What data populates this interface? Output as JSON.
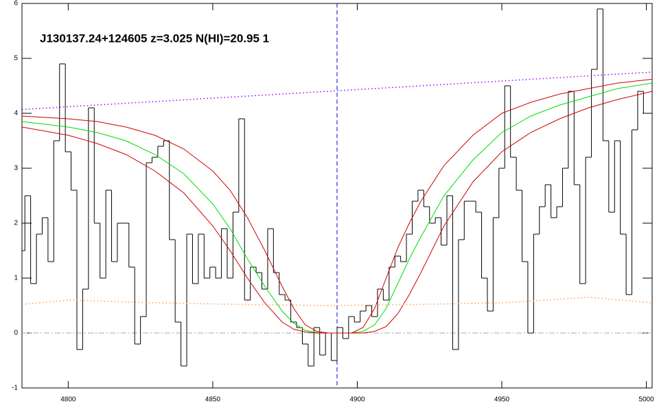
{
  "chart_data": {
    "type": "step",
    "title": "J130137.24+124605 z=3.025 N(HI)=20.95 1",
    "xlim": [
      4784,
      5002
    ],
    "ylim": [
      -1,
      6
    ],
    "xticks": [
      4800,
      4850,
      4900,
      4950,
      5000
    ],
    "yticks": [
      -1,
      0,
      1,
      2,
      3,
      4,
      5,
      6
    ],
    "hline": {
      "value": 0,
      "color": "#aaaaaa"
    },
    "vline": {
      "value": 4893,
      "color": "#0000cc"
    },
    "series": [
      {
        "type": "step",
        "color": "#000000",
        "x": [
          4784,
          4786,
          4788,
          4790,
          4792,
          4794,
          4796,
          4798,
          4800,
          4802,
          4804,
          4806,
          4808,
          4810,
          4812,
          4814,
          4816,
          4818,
          4820,
          4822,
          4824,
          4826,
          4828,
          4830,
          4832,
          4834,
          4836,
          4838,
          4840,
          4842,
          4844,
          4846,
          4848,
          4850,
          4852,
          4854,
          4856,
          4858,
          4860,
          4862,
          4864,
          4866,
          4868,
          4870,
          4872,
          4874,
          4876,
          4878,
          4880,
          4882,
          4884,
          4886,
          4888,
          4890,
          4892,
          4894,
          4896,
          4898,
          4900,
          4902,
          4904,
          4906,
          4908,
          4910,
          4912,
          4914,
          4916,
          4918,
          4920,
          4922,
          4924,
          4926,
          4928,
          4930,
          4932,
          4934,
          4936,
          4938,
          4940,
          4942,
          4944,
          4946,
          4948,
          4950,
          4952,
          4954,
          4956,
          4958,
          4960,
          4962,
          4964,
          4966,
          4968,
          4970,
          4972,
          4974,
          4976,
          4978,
          4980,
          4982,
          4984,
          4986,
          4988,
          4990,
          4992,
          4994,
          4996,
          4998,
          5000
        ],
        "values": [
          1.5,
          2.5,
          0.9,
          1.8,
          2.1,
          1.3,
          3.5,
          4.9,
          3.3,
          2.6,
          -0.3,
          0.8,
          4.1,
          2.0,
          1.0,
          2.6,
          1.3,
          2.0,
          2.0,
          1.2,
          -0.2,
          0.3,
          3.1,
          3.2,
          3.4,
          3.5,
          1.7,
          0.2,
          -0.6,
          1.8,
          0.9,
          1.8,
          1.0,
          1.2,
          1.0,
          1.9,
          1.0,
          2.2,
          3.9,
          0.6,
          1.2,
          1.1,
          0.8,
          1.9,
          1.1,
          0.7,
          0.6,
          0.2,
          0.1,
          -0.2,
          -0.6,
          0.1,
          -0.4,
          0.0,
          -0.5,
          0.1,
          -0.1,
          0.3,
          0.2,
          0.4,
          0.5,
          0.3,
          0.8,
          0.6,
          1.2,
          1.4,
          1.3,
          1.8,
          2.4,
          2.6,
          2.3,
          2.0,
          2.1,
          1.6,
          2.5,
          -0.3,
          1.7,
          2.4,
          2.4,
          2.2,
          1.0,
          0.4,
          2.1,
          3.0,
          4.5,
          3.2,
          2.6,
          1.3,
          0.0,
          1.8,
          2.3,
          2.7,
          2.1,
          2.3,
          3.0,
          4.4,
          2.7,
          0.9,
          3.2,
          4.8,
          5.9,
          3.5,
          2.2,
          3.5,
          1.8,
          0.7,
          3.7,
          4.4,
          4.0
        ]
      },
      {
        "type": "line",
        "color": "#00dd00",
        "x": [
          4784,
          4800,
          4810,
          4820,
          4830,
          4840,
          4850,
          4856,
          4862,
          4868,
          4874,
          4878,
          4882,
          4886,
          4890,
          4894,
          4898,
          4902,
          4906,
          4910,
          4914,
          4918,
          4922,
          4930,
          4940,
          4950,
          4960,
          4970,
          4980,
          4990,
          5002
        ],
        "values": [
          3.85,
          3.75,
          3.65,
          3.5,
          3.25,
          2.9,
          2.35,
          1.9,
          1.35,
          0.85,
          0.4,
          0.18,
          0.05,
          0.01,
          0,
          0,
          0,
          0.03,
          0.15,
          0.45,
          0.9,
          1.35,
          1.75,
          2.5,
          3.15,
          3.65,
          3.95,
          4.15,
          4.3,
          4.45,
          4.55
        ]
      },
      {
        "type": "line",
        "color": "#cc0000",
        "x": [
          4784,
          4800,
          4810,
          4820,
          4830,
          4840,
          4850,
          4856,
          4862,
          4868,
          4874,
          4878,
          4882,
          4886,
          4890,
          4894,
          4898,
          4902,
          4906,
          4910,
          4914,
          4918,
          4922,
          4930,
          4940,
          4950,
          4960,
          4970,
          4980,
          4990,
          5002
        ],
        "values": [
          3.95,
          3.9,
          3.85,
          3.75,
          3.6,
          3.35,
          2.95,
          2.6,
          2.1,
          1.5,
          0.85,
          0.45,
          0.15,
          0.03,
          0,
          0,
          0,
          0.1,
          0.45,
          1.0,
          1.55,
          2.0,
          2.4,
          3.05,
          3.6,
          4.0,
          4.2,
          4.35,
          4.45,
          4.55,
          4.62
        ]
      },
      {
        "type": "line",
        "color": "#cc0000",
        "x": [
          4784,
          4800,
          4810,
          4820,
          4830,
          4840,
          4850,
          4856,
          4862,
          4868,
          4874,
          4878,
          4882,
          4886,
          4890,
          4894,
          4898,
          4902,
          4906,
          4910,
          4914,
          4918,
          4922,
          4930,
          4940,
          4950,
          4960,
          4970,
          4980,
          4990,
          5002
        ],
        "values": [
          3.75,
          3.6,
          3.45,
          3.25,
          2.95,
          2.55,
          1.95,
          1.5,
          1.0,
          0.55,
          0.2,
          0.07,
          0.02,
          0,
          0,
          0,
          0,
          0,
          0.03,
          0.12,
          0.35,
          0.7,
          1.1,
          1.95,
          2.75,
          3.3,
          3.65,
          3.9,
          4.1,
          4.25,
          4.4
        ]
      },
      {
        "type": "dotted",
        "color": "#9900ff",
        "x": [
          4784,
          5002
        ],
        "values": [
          4.07,
          4.75
        ]
      },
      {
        "type": "dotted",
        "color": "#ff9955",
        "x": [
          4784,
          4800,
          4830,
          4860,
          4890,
          4920,
          4950,
          4980,
          5002
        ],
        "values": [
          0.52,
          0.6,
          0.55,
          0.52,
          0.5,
          0.52,
          0.55,
          0.65,
          0.55
        ]
      }
    ]
  }
}
